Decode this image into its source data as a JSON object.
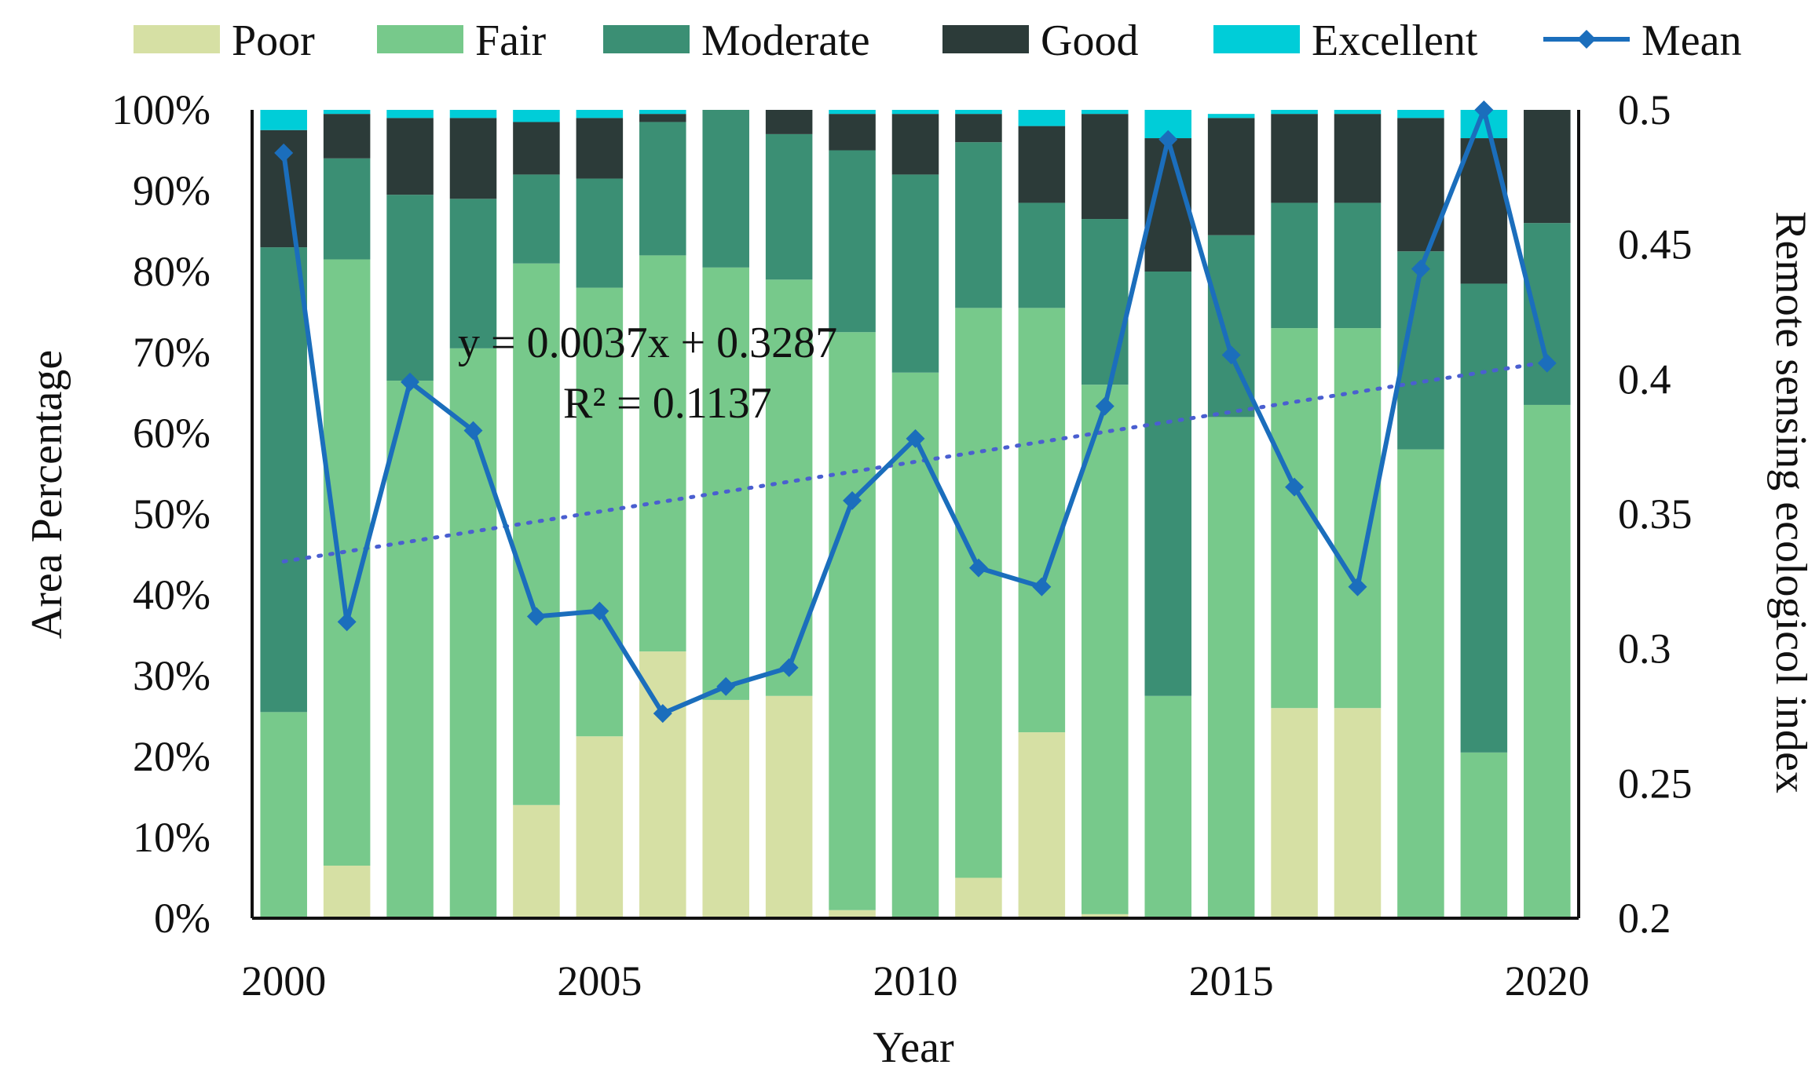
{
  "chart_data": {
    "type": "bar",
    "title": "",
    "xlabel": "Year",
    "ylabel": "Area Percentage",
    "y2label": "Remote sensing ecologicol index",
    "ylim": [
      0,
      100
    ],
    "y2lim": [
      0.2,
      0.5
    ],
    "categories": [
      2000,
      2001,
      2002,
      2003,
      2004,
      2005,
      2006,
      2007,
      2008,
      2009,
      2010,
      2011,
      2012,
      2013,
      2014,
      2015,
      2016,
      2017,
      2018,
      2019,
      2020
    ],
    "x_tick_labels": [
      "2000",
      "2005",
      "2010",
      "2015",
      "2020"
    ],
    "y_tick_labels": [
      "0%",
      "10%",
      "20%",
      "30%",
      "40%",
      "50%",
      "60%",
      "70%",
      "80%",
      "90%",
      "100%"
    ],
    "y2_tick_labels": [
      "0.2",
      "0.25",
      "0.3",
      "0.35",
      "0.4",
      "0.45",
      "0.5"
    ],
    "series": [
      {
        "name": "Poor",
        "color": "#d6e0a4",
        "values": [
          0,
          6.5,
          0,
          0,
          14,
          22.5,
          33,
          27,
          27.5,
          1,
          0,
          5,
          23,
          0.5,
          0,
          0,
          26,
          26,
          0,
          0,
          0
        ]
      },
      {
        "name": "Fair",
        "color": "#77c98b",
        "values": [
          25.5,
          75,
          66.5,
          70.5,
          67,
          55.5,
          49,
          53.5,
          51.5,
          71.5,
          67.5,
          70.5,
          52.5,
          65.5,
          27.5,
          62,
          47,
          47,
          58,
          20.5,
          63.5
        ]
      },
      {
        "name": "Moderate",
        "color": "#3b8f74",
        "values": [
          57.5,
          12.5,
          23,
          18.5,
          11,
          13.5,
          16.5,
          19.5,
          18,
          22.5,
          24.5,
          20.5,
          13,
          20.5,
          52.5,
          22.5,
          15.5,
          15.5,
          24.5,
          58,
          22.5
        ]
      },
      {
        "name": "Good",
        "color": "#2c3b39",
        "values": [
          14.5,
          5.5,
          9.5,
          10,
          6.5,
          7.5,
          1,
          0.5,
          3,
          4.5,
          7.5,
          3.5,
          9.5,
          13,
          16.5,
          14.5,
          11,
          11,
          16.5,
          18,
          14
        ]
      },
      {
        "name": "Excellent",
        "color": "#00cdd8",
        "values": [
          2.5,
          0.5,
          1,
          1,
          1.5,
          1,
          0.5,
          0,
          0,
          0.5,
          0.5,
          0.5,
          2,
          0.5,
          3.5,
          0.5,
          0.5,
          0.5,
          1,
          3.5,
          0
        ]
      }
    ],
    "line_series": {
      "name": "Mean",
      "color": "#1b6ebc",
      "axis": "secondary",
      "values": [
        0.484,
        0.31,
        0.399,
        0.381,
        0.312,
        0.314,
        0.276,
        0.286,
        0.293,
        0.355,
        0.378,
        0.33,
        0.323,
        0.39,
        0.489,
        0.409,
        0.36,
        0.323,
        0.441,
        0.5,
        0.406
      ]
    },
    "trendline": {
      "equation": "y = 0.0037x + 0.3287",
      "r_squared": "R² = 0.1137",
      "slope": 0.0037,
      "intercept": 0.3287,
      "color": "#4a5fd0",
      "style": "dotted"
    },
    "legend": [
      "Poor",
      "Fair",
      "Moderate",
      "Good",
      "Excellent",
      "Mean"
    ],
    "legend_position": "top"
  }
}
